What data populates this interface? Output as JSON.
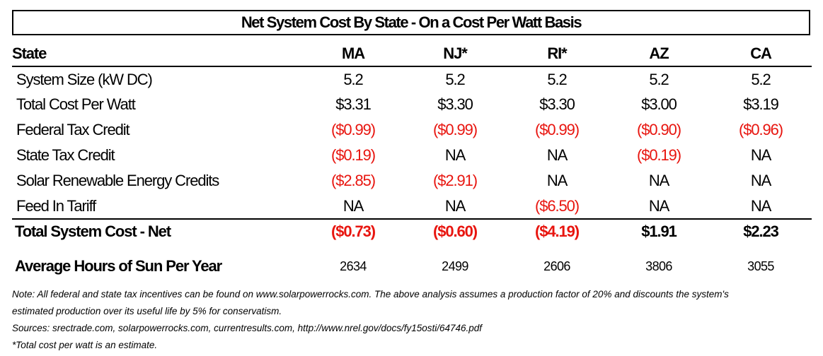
{
  "title": "Net System Cost By State - On a Cost Per Watt Basis",
  "header": {
    "label": "State",
    "columns": [
      "MA",
      "NJ*",
      "RI*",
      "AZ",
      "CA"
    ]
  },
  "rows": [
    {
      "label": "System Size (kW DC)",
      "values": [
        "5.2",
        "5.2",
        "5.2",
        "5.2",
        "5.2"
      ],
      "negative": [
        false,
        false,
        false,
        false,
        false
      ]
    },
    {
      "label": "Total Cost Per Watt",
      "values": [
        "$3.31",
        "$3.30",
        "$3.30",
        "$3.00",
        "$3.19"
      ],
      "negative": [
        false,
        false,
        false,
        false,
        false
      ]
    },
    {
      "label": "Federal Tax Credit",
      "values": [
        "($0.99)",
        "($0.99)",
        "($0.99)",
        "($0.90)",
        "($0.96)"
      ],
      "negative": [
        true,
        true,
        true,
        true,
        true
      ]
    },
    {
      "label": "State Tax Credit",
      "values": [
        "($0.19)",
        "NA",
        "NA",
        "($0.19)",
        "NA"
      ],
      "negative": [
        true,
        false,
        false,
        true,
        false
      ]
    },
    {
      "label": "Solar Renewable Energy Credits",
      "values": [
        "($2.85)",
        "($2.91)",
        "NA",
        "NA",
        "NA"
      ],
      "negative": [
        true,
        true,
        false,
        false,
        false
      ]
    },
    {
      "label": "Feed In Tariff",
      "values": [
        "NA",
        "NA",
        "($6.50)",
        "NA",
        "NA"
      ],
      "negative": [
        false,
        false,
        true,
        false,
        false
      ]
    }
  ],
  "total": {
    "label": "Total System Cost - Net",
    "values": [
      "($0.73)",
      "($0.60)",
      "($4.19)",
      "$1.91",
      "$2.23"
    ],
    "negative": [
      true,
      true,
      true,
      false,
      false
    ]
  },
  "sun": {
    "label": "Average Hours of Sun Per Year",
    "values": [
      "2634",
      "2499",
      "2606",
      "3806",
      "3055"
    ]
  },
  "notes": [
    "Note: All federal and state tax incentives can be found on www.solarpowerrocks.com. The above analysis assumes a production factor of 20% and discounts the system's",
    "estimated production over its useful life by 5% for conservatism.",
    "Sources: srectrade.com, solarpowerrocks.com, currentresults.com, http://www.nrel.gov/docs/fy15osti/64746.pdf",
    "*Total cost per watt is an estimate."
  ],
  "colors": {
    "negative": "#e8150f",
    "text": "#000000",
    "border": "#000000"
  }
}
